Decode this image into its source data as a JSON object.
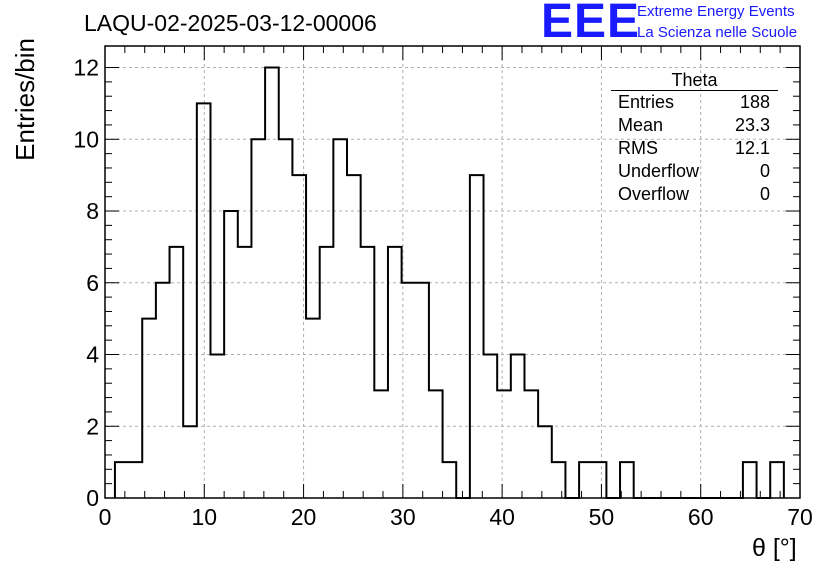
{
  "header": {
    "title": "LAQU-02-2025-03-12-00006",
    "logo_text": "EEE",
    "logo_line1": "Extreme Energy Events",
    "logo_line2": "La Scienza nelle Scuole"
  },
  "stats_box": {
    "title": "Theta",
    "rows": [
      {
        "label": "Entries",
        "value": "188"
      },
      {
        "label": "Mean",
        "value": "23.3"
      },
      {
        "label": "RMS",
        "value": "12.1"
      },
      {
        "label": "Underflow",
        "value": "0"
      },
      {
        "label": "Overflow",
        "value": "0"
      }
    ]
  },
  "colors": {
    "line": "#000000",
    "grid": "#b0b0b0",
    "logo": "#1a1aff"
  },
  "chart_data": {
    "type": "bar",
    "style": "step-histogram",
    "xlabel": "θ [°]",
    "ylabel": "Entries/bin",
    "xlim": [
      0,
      70
    ],
    "ylim": [
      0,
      12.6
    ],
    "xticks": [
      0,
      10,
      20,
      30,
      40,
      50,
      60,
      70
    ],
    "yticks": [
      0,
      2,
      4,
      6,
      8,
      10,
      12
    ],
    "grid": true,
    "bin_edges_start": 1,
    "bin_width": 1.375,
    "values": [
      1,
      1,
      5,
      6,
      7,
      2,
      11,
      4,
      8,
      7,
      10,
      12,
      10,
      9,
      5,
      7,
      10,
      9,
      7,
      3,
      7,
      6,
      6,
      3,
      1,
      0,
      9,
      4,
      3,
      4,
      3,
      2,
      1,
      0,
      1,
      1,
      0,
      1,
      0,
      0,
      0,
      0,
      0,
      0,
      0,
      0,
      1,
      0,
      1
    ]
  }
}
